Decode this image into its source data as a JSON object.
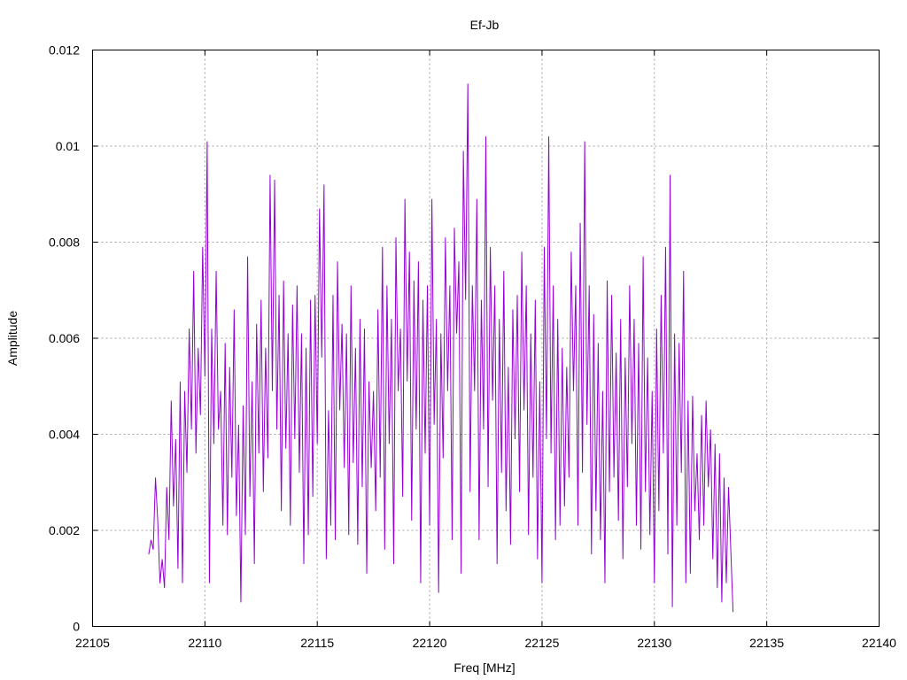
{
  "chart_data": {
    "type": "line",
    "title": "Ef-Jb",
    "xlabel": "Freq [MHz]",
    "ylabel": "Amplitude",
    "xlim": [
      22105,
      22140
    ],
    "ylim": [
      0,
      0.012
    ],
    "x_ticks": [
      22105,
      22110,
      22115,
      22120,
      22125,
      22130,
      22135,
      22140
    ],
    "y_ticks": [
      0,
      0.002,
      0.004,
      0.006,
      0.008,
      0.01,
      0.012
    ],
    "x_tick_labels": [
      "22105",
      "22110",
      "22115",
      "22120",
      "22125",
      "22130",
      "22135",
      "22140"
    ],
    "y_tick_labels": [
      "0",
      "0.002",
      "0.004",
      "0.006",
      "0.008",
      "0.01",
      "0.012"
    ],
    "grid": true,
    "legend": "none",
    "series": [
      {
        "color": "#9400d3",
        "x_start": 22107.5,
        "x_step": 0.1,
        "values": [
          0.0015,
          0.0018,
          0.0016,
          0.0031,
          0.0022,
          0.0009,
          0.0014,
          0.0008,
          0.0029,
          0.0018,
          0.0047,
          0.0025,
          0.0039,
          0.0012,
          0.0051,
          0.0009,
          0.0049,
          0.0032,
          0.0062,
          0.0041,
          0.0074,
          0.0036,
          0.0058,
          0.0044,
          0.0079,
          0.0052,
          0.0101,
          0.0009,
          0.0062,
          0.0038,
          0.0074,
          0.0041,
          0.0049,
          0.0021,
          0.0059,
          0.0019,
          0.0054,
          0.0031,
          0.0066,
          0.0023,
          0.0042,
          0.0005,
          0.0046,
          0.0019,
          0.0077,
          0.0027,
          0.0051,
          0.0013,
          0.0063,
          0.0036,
          0.0068,
          0.0028,
          0.0058,
          0.0035,
          0.0094,
          0.0049,
          0.0093,
          0.0041,
          0.0069,
          0.0024,
          0.0072,
          0.0037,
          0.0061,
          0.0021,
          0.0067,
          0.0039,
          0.0071,
          0.0032,
          0.0061,
          0.0013,
          0.0058,
          0.0019,
          0.0068,
          0.0027,
          0.0069,
          0.0038,
          0.0087,
          0.0056,
          0.0092,
          0.0014,
          0.0045,
          0.0021,
          0.0069,
          0.0018,
          0.0076,
          0.0045,
          0.0063,
          0.0033,
          0.0061,
          0.0019,
          0.0071,
          0.0034,
          0.0058,
          0.0017,
          0.0064,
          0.0029,
          0.0062,
          0.0011,
          0.0051,
          0.0033,
          0.0049,
          0.0024,
          0.0066,
          0.0031,
          0.0079,
          0.0016,
          0.0071,
          0.0038,
          0.0064,
          0.0013,
          0.0081,
          0.0049,
          0.0062,
          0.0027,
          0.0089,
          0.0051,
          0.0078,
          0.0022,
          0.0072,
          0.0041,
          0.0076,
          0.0009,
          0.0068,
          0.0036,
          0.0071,
          0.0021,
          0.0089,
          0.0042,
          0.0064,
          0.0007,
          0.0061,
          0.0035,
          0.0081,
          0.0049,
          0.0071,
          0.0018,
          0.0083,
          0.0061,
          0.0076,
          0.0011,
          0.0099,
          0.0068,
          0.0113,
          0.0028,
          0.0071,
          0.0049,
          0.0089,
          0.0018,
          0.0068,
          0.0041,
          0.0102,
          0.0029,
          0.0079,
          0.0047,
          0.0071,
          0.0013,
          0.0064,
          0.0032,
          0.0074,
          0.0024,
          0.0054,
          0.0017,
          0.0066,
          0.0039,
          0.0069,
          0.0028,
          0.0078,
          0.0045,
          0.0071,
          0.0019,
          0.0061,
          0.0031,
          0.0068,
          0.0014,
          0.0051,
          0.0009,
          0.0079,
          0.0039,
          0.0102,
          0.0036,
          0.0071,
          0.0018,
          0.0064,
          0.0021,
          0.0058,
          0.0025,
          0.0054,
          0.0031,
          0.0078,
          0.0049,
          0.0071,
          0.0021,
          0.0084,
          0.0032,
          0.0101,
          0.0042,
          0.0071,
          0.0015,
          0.0065,
          0.0024,
          0.0059,
          0.0018,
          0.0049,
          0.0009,
          0.0072,
          0.0028,
          0.0069,
          0.0031,
          0.0057,
          0.0022,
          0.0064,
          0.0014,
          0.0056,
          0.0029,
          0.0071,
          0.0038,
          0.0064,
          0.0021,
          0.0059,
          0.0016,
          0.0077,
          0.0028,
          0.0056,
          0.0019,
          0.0049,
          0.0009,
          0.0062,
          0.0024,
          0.0069,
          0.0036,
          0.0079,
          0.0015,
          0.0094,
          0.0004,
          0.0061,
          0.0021,
          0.0059,
          0.0032,
          0.0074,
          0.0009,
          0.0047,
          0.0011,
          0.0048,
          0.0024,
          0.0036,
          0.0018,
          0.0044,
          0.0021,
          0.0047,
          0.0029,
          0.0041,
          0.0014,
          0.0038,
          0.0008,
          0.0036,
          0.0005,
          0.0031,
          0.0009,
          0.0029,
          0.0016,
          0.0003
        ]
      }
    ]
  }
}
